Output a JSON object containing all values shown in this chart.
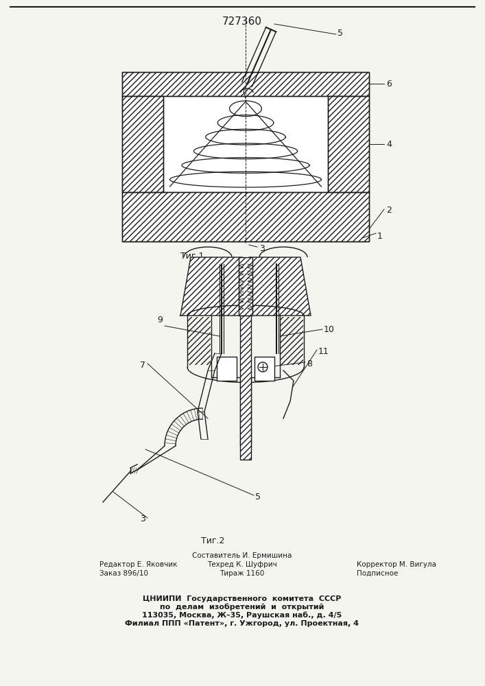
{
  "patent_number": "727360",
  "fig1_label": "Τиг.1",
  "fig2_label": "Τиг.2",
  "footer_line1_left": "Редактор Е. Яковчик",
  "footer_line2_left": "Заказ 896/10",
  "footer_line1_mid": "Составитель И. Ермишина",
  "footer_line2_mid": "Техред К. Шуфрич",
  "footer_line3_mid": "Тираж 1160",
  "footer_line1_right": "Корректор М. Вигула",
  "footer_line2_right": "Подписное",
  "cniipи_line1": "ЦНИИПИ  Государственного  комитета  СССР",
  "cniipи_line2": "по  делам  изобретений  и  открытий",
  "cniipи_line3": "113035, Москва, Ж–35, Раушская наб., д. 4/5",
  "cniipи_line4": "Филиал ППП «Патент», г. Ужгород, ул. Проектная, 4",
  "bg_color": "#f5f5f0",
  "line_color": "#1a1a1a",
  "fig_width": 7.07,
  "fig_height": 10.0,
  "dpi": 100
}
